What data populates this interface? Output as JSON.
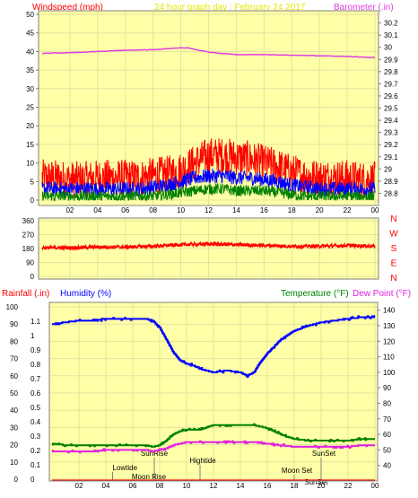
{
  "colors": {
    "plot_bg": "#ffffa8",
    "wind": "#ff0000",
    "gust_avg": "#0000ff",
    "wind_avg": "#008000",
    "barometer": "#e040e0",
    "direction": "#ff0000",
    "humidity": "#0000ff",
    "temperature": "#008000",
    "dewpoint": "#e020e0",
    "rainfall": "#ff0000",
    "annotation": "#808080"
  },
  "header": {
    "windspeed_label": "Windspeed (mph)",
    "graph_title": "24 hour graph day : February 24 2017",
    "barometer_label": "Barometer (.in)"
  },
  "lower_header": {
    "rainfall_label": "Rainfall (.in)",
    "humidity_label": "Humidity (%)",
    "temperature_label": "Temperature (°F)",
    "dewpoint_label": "Dew Point (°F)"
  },
  "chart_data": [
    {
      "type": "line",
      "title": "24 hour graph day : February 24 2017",
      "xlabel": "",
      "x_ticks": [
        "02",
        "04",
        "06",
        "08",
        "10",
        "12",
        "14",
        "16",
        "18",
        "20",
        "22",
        "00"
      ],
      "left_axis": {
        "label": "Windspeed (mph)",
        "ylim": [
          0,
          50
        ],
        "ticks": [
          0,
          5,
          10,
          15,
          20,
          25,
          30,
          35,
          40,
          45,
          50
        ]
      },
      "right_axis": {
        "label": "Barometer (.in)",
        "ylim": [
          28.7,
          30.3
        ],
        "ticks": [
          "28.8",
          "28.9",
          "29",
          "29.1",
          "29.2",
          "29.3",
          "29.4",
          "29.5",
          "29.6",
          "29.7",
          "29.8",
          "29.9",
          "30",
          "30.1",
          "30.2"
        ]
      },
      "series": [
        {
          "name": "Windspeed (mph)",
          "axis": "left",
          "x": [
            0,
            1,
            2,
            3,
            4,
            5,
            6,
            7,
            8,
            9,
            10,
            11,
            12,
            13,
            14,
            15,
            16,
            17,
            18,
            19,
            20,
            21,
            22,
            23,
            24
          ],
          "values": [
            6,
            6,
            5.5,
            5.5,
            6,
            6,
            6,
            6,
            6.5,
            7,
            8,
            10,
            12,
            12,
            11.5,
            11,
            10,
            9,
            7.5,
            6.5,
            6,
            6,
            6,
            5.5,
            5.5
          ],
          "noise": 5
        },
        {
          "axis": "left",
          "x": [
            0,
            1,
            2,
            3,
            4,
            5,
            6,
            7,
            8,
            9,
            10,
            11,
            12,
            13,
            14,
            15,
            16,
            17,
            18,
            19,
            20,
            21,
            22,
            23,
            24
          ],
          "values": [
            3,
            3,
            3,
            3,
            3,
            3,
            3,
            3,
            3.5,
            4,
            5,
            6,
            6.5,
            6.5,
            6,
            6,
            5.5,
            5,
            4,
            3.5,
            3,
            3,
            3,
            3,
            3
          ],
          "noise": 2
        },
        {
          "axis": "left",
          "x": [
            0,
            1,
            2,
            3,
            4,
            5,
            6,
            7,
            8,
            9,
            10,
            11,
            12,
            13,
            14,
            15,
            16,
            17,
            18,
            19,
            20,
            21,
            22,
            23,
            24
          ],
          "values": [
            1,
            1,
            1,
            1,
            1,
            1,
            1,
            1,
            1,
            1.5,
            2,
            2.5,
            3,
            3,
            2.5,
            2.5,
            2.5,
            2,
            1.5,
            1,
            1,
            1,
            1,
            1,
            1
          ],
          "noise": 1.5
        },
        {
          "name": "Barometer (.in)",
          "axis": "right",
          "x": [
            0,
            2,
            4,
            6,
            8,
            10,
            10.5,
            12,
            14,
            16,
            18,
            20,
            22,
            24
          ],
          "values": [
            29.95,
            29.955,
            29.965,
            29.975,
            29.98,
            29.995,
            29.995,
            29.96,
            29.94,
            29.94,
            29.935,
            29.93,
            29.925,
            29.915
          ]
        }
      ]
    },
    {
      "type": "line",
      "left_axis": {
        "ylim": [
          0,
          360
        ],
        "ticks": [
          0,
          90,
          180,
          270,
          360
        ]
      },
      "right_axis": {
        "ticks": [
          "N",
          "W",
          "S",
          "E",
          "N"
        ]
      },
      "x_ticks": [],
      "series": [
        {
          "axis": "left",
          "x": [
            0,
            2,
            4,
            6,
            8,
            10,
            12,
            14,
            16,
            18,
            20,
            22,
            24
          ],
          "values": [
            185,
            185,
            190,
            190,
            195,
            205,
            210,
            205,
            200,
            195,
            195,
            200,
            195
          ],
          "noise": 12
        }
      ]
    },
    {
      "type": "line",
      "x_ticks": [
        "02",
        "04",
        "06",
        "08",
        "10",
        "12",
        "14",
        "16",
        "18",
        "20",
        "22",
        "00"
      ],
      "far_left_axis": {
        "label": "Rainfall (.in)",
        "ylim": [
          0,
          1.2
        ],
        "ticks": [
          "0",
          "0.1",
          "0.2",
          "0.3",
          "0.4",
          "0.5",
          "0.6",
          "0.7",
          "0.8",
          "0.9",
          "1",
          "1.1"
        ]
      },
      "humidity_axis": {
        "label": "Humidity (%)",
        "ylim": [
          0,
          100
        ],
        "ticks": [
          0,
          10,
          20,
          30,
          40,
          50,
          60,
          70,
          80,
          90,
          100
        ]
      },
      "right_axis": {
        "label": "Temperature (°F) / Dew Point (°F)",
        "ylim": [
          30,
          145
        ],
        "ticks": [
          40,
          50,
          60,
          70,
          80,
          90,
          100,
          110,
          120,
          130,
          140
        ]
      },
      "annotations": [
        "Lowtide",
        "SunRise",
        "Moon Rise",
        "Hightide",
        "SunSet",
        "Moon Set",
        "SunSet"
      ],
      "series": [
        {
          "name": "Humidity (%)",
          "axis": "humidity",
          "x": [
            0,
            1,
            2,
            3,
            4,
            5,
            6,
            7,
            7.5,
            8,
            8.5,
            9,
            9.5,
            10,
            10.5,
            11,
            12,
            13,
            14,
            14.5,
            15,
            15.5,
            16,
            17,
            18,
            19,
            20,
            21,
            22,
            23,
            24
          ],
          "values": [
            90,
            91,
            92,
            92,
            93,
            93,
            93,
            93,
            92,
            88,
            81,
            74,
            69,
            67,
            66,
            64,
            62,
            63,
            62,
            60,
            62,
            68,
            73,
            81,
            86,
            89,
            91,
            92,
            93,
            94,
            94
          ]
        },
        {
          "name": "Temperature (°F)",
          "axis": "right",
          "x": [
            0,
            1,
            2,
            3,
            4,
            5,
            6,
            7,
            7.5,
            8,
            8.5,
            9,
            9.5,
            10,
            11,
            12,
            13,
            14,
            15,
            16,
            17,
            18,
            19,
            20,
            21,
            22,
            23,
            24
          ],
          "values": [
            54,
            53,
            53,
            53,
            53,
            53,
            53,
            53,
            52,
            53,
            56,
            60,
            62,
            63,
            63,
            66,
            66,
            66,
            66,
            64,
            60,
            57,
            56,
            56,
            56,
            56,
            57,
            57
          ]
        },
        {
          "name": "Dew Point (°F)",
          "axis": "right",
          "x": [
            0,
            1,
            2,
            3,
            4,
            5,
            6,
            7,
            7.5,
            8,
            8.5,
            9,
            9.5,
            10,
            11,
            12,
            13,
            14,
            15,
            16,
            17,
            18,
            19,
            20,
            21,
            22,
            23,
            24
          ],
          "values": [
            49,
            49,
            49,
            49,
            50,
            50,
            50,
            50,
            49,
            50,
            51,
            53,
            54,
            55,
            55,
            55,
            55,
            55,
            55,
            54,
            53,
            52,
            52,
            52,
            52,
            52,
            53,
            53
          ]
        },
        {
          "name": "Rainfall (.in)",
          "axis": "far_left",
          "x": [
            0,
            24
          ],
          "values": [
            0,
            0
          ]
        }
      ]
    }
  ]
}
